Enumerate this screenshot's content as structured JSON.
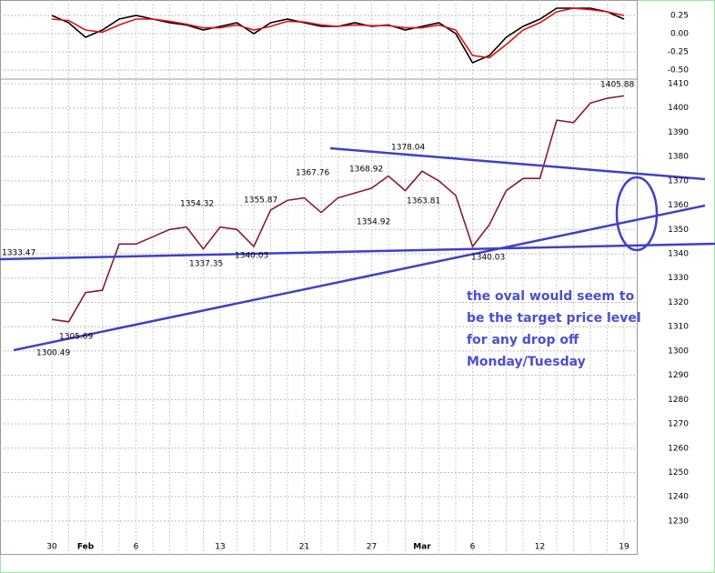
{
  "chart_data": [
    {
      "type": "line",
      "categories": [
        "30",
        null,
        "Feb",
        null,
        null,
        "6",
        null,
        null,
        null,
        null,
        "13",
        null,
        null,
        null,
        null,
        "21",
        null,
        null,
        null,
        "27",
        null,
        null,
        "Mar",
        null,
        null,
        "6",
        null,
        null,
        null,
        "12",
        null,
        null,
        null,
        null,
        "19"
      ],
      "values": [
        1313,
        1312,
        1324,
        1325,
        1344,
        1344,
        1347,
        1350,
        1351,
        1342,
        1351,
        1350,
        1343,
        1358,
        1362,
        1363,
        1357,
        1363,
        1365,
        1367,
        1372,
        1366,
        1374,
        1370,
        1364,
        1343,
        1352,
        1366,
        1371,
        1371,
        1395,
        1394,
        1402,
        1404,
        1405
      ],
      "color": "#8b1a2b",
      "ylim": [
        1223.6,
        1411.5
      ],
      "yticks": [
        1230,
        1240,
        1250,
        1260,
        1270,
        1280,
        1290,
        1300,
        1310,
        1320,
        1330,
        1340,
        1350,
        1360,
        1370,
        1380,
        1390,
        1400,
        1410
      ],
      "grid": true,
      "annotations": [
        "1333.47",
        "1305.69",
        "1300.49",
        "1354.32",
        "1337.35",
        "1340.03",
        "1355.87",
        "1367.76",
        "1368.92",
        "1354.92",
        "1378.04",
        "1363.81",
        "1340.03",
        "1405.88"
      ],
      "note": [
        "the oval would seem to",
        "be the target price level",
        "for any drop off",
        "Monday/Tuesday"
      ]
    },
    {
      "type": "line",
      "ylim": [
        -0.6,
        0.4
      ],
      "yticks": [
        0.25,
        {
          "value": 0,
          "label": "0.00"
        },
        {
          "value": -0.25,
          "label": "-0.25"
        },
        {
          "value": -0.5,
          "label": "-0.50"
        }
      ],
      "series": [
        {
          "color": "#000000",
          "values": [
            0.25,
            0.15,
            -0.05,
            0.05,
            0.2,
            0.25,
            0.2,
            0.15,
            0.12,
            0.05,
            0.1,
            0.15,
            0.0,
            0.15,
            0.2,
            0.15,
            0.1,
            0.1,
            0.15,
            0.1,
            0.12,
            0.05,
            0.1,
            0.15,
            0.0,
            -0.4,
            -0.3,
            -0.05,
            0.1,
            0.2,
            0.35,
            0.35,
            0.35,
            0.3,
            0.2
          ]
        },
        {
          "color": "#e01010",
          "values": [
            0.2,
            0.18,
            0.05,
            0.02,
            0.12,
            0.2,
            0.2,
            0.17,
            0.13,
            0.08,
            0.08,
            0.12,
            0.05,
            0.1,
            0.17,
            0.16,
            0.12,
            0.1,
            0.12,
            0.11,
            0.11,
            0.08,
            0.08,
            0.12,
            0.05,
            -0.3,
            -0.33,
            -0.15,
            0.05,
            0.15,
            0.3,
            0.35,
            0.33,
            0.3,
            0.25
          ]
        }
      ]
    }
  ]
}
